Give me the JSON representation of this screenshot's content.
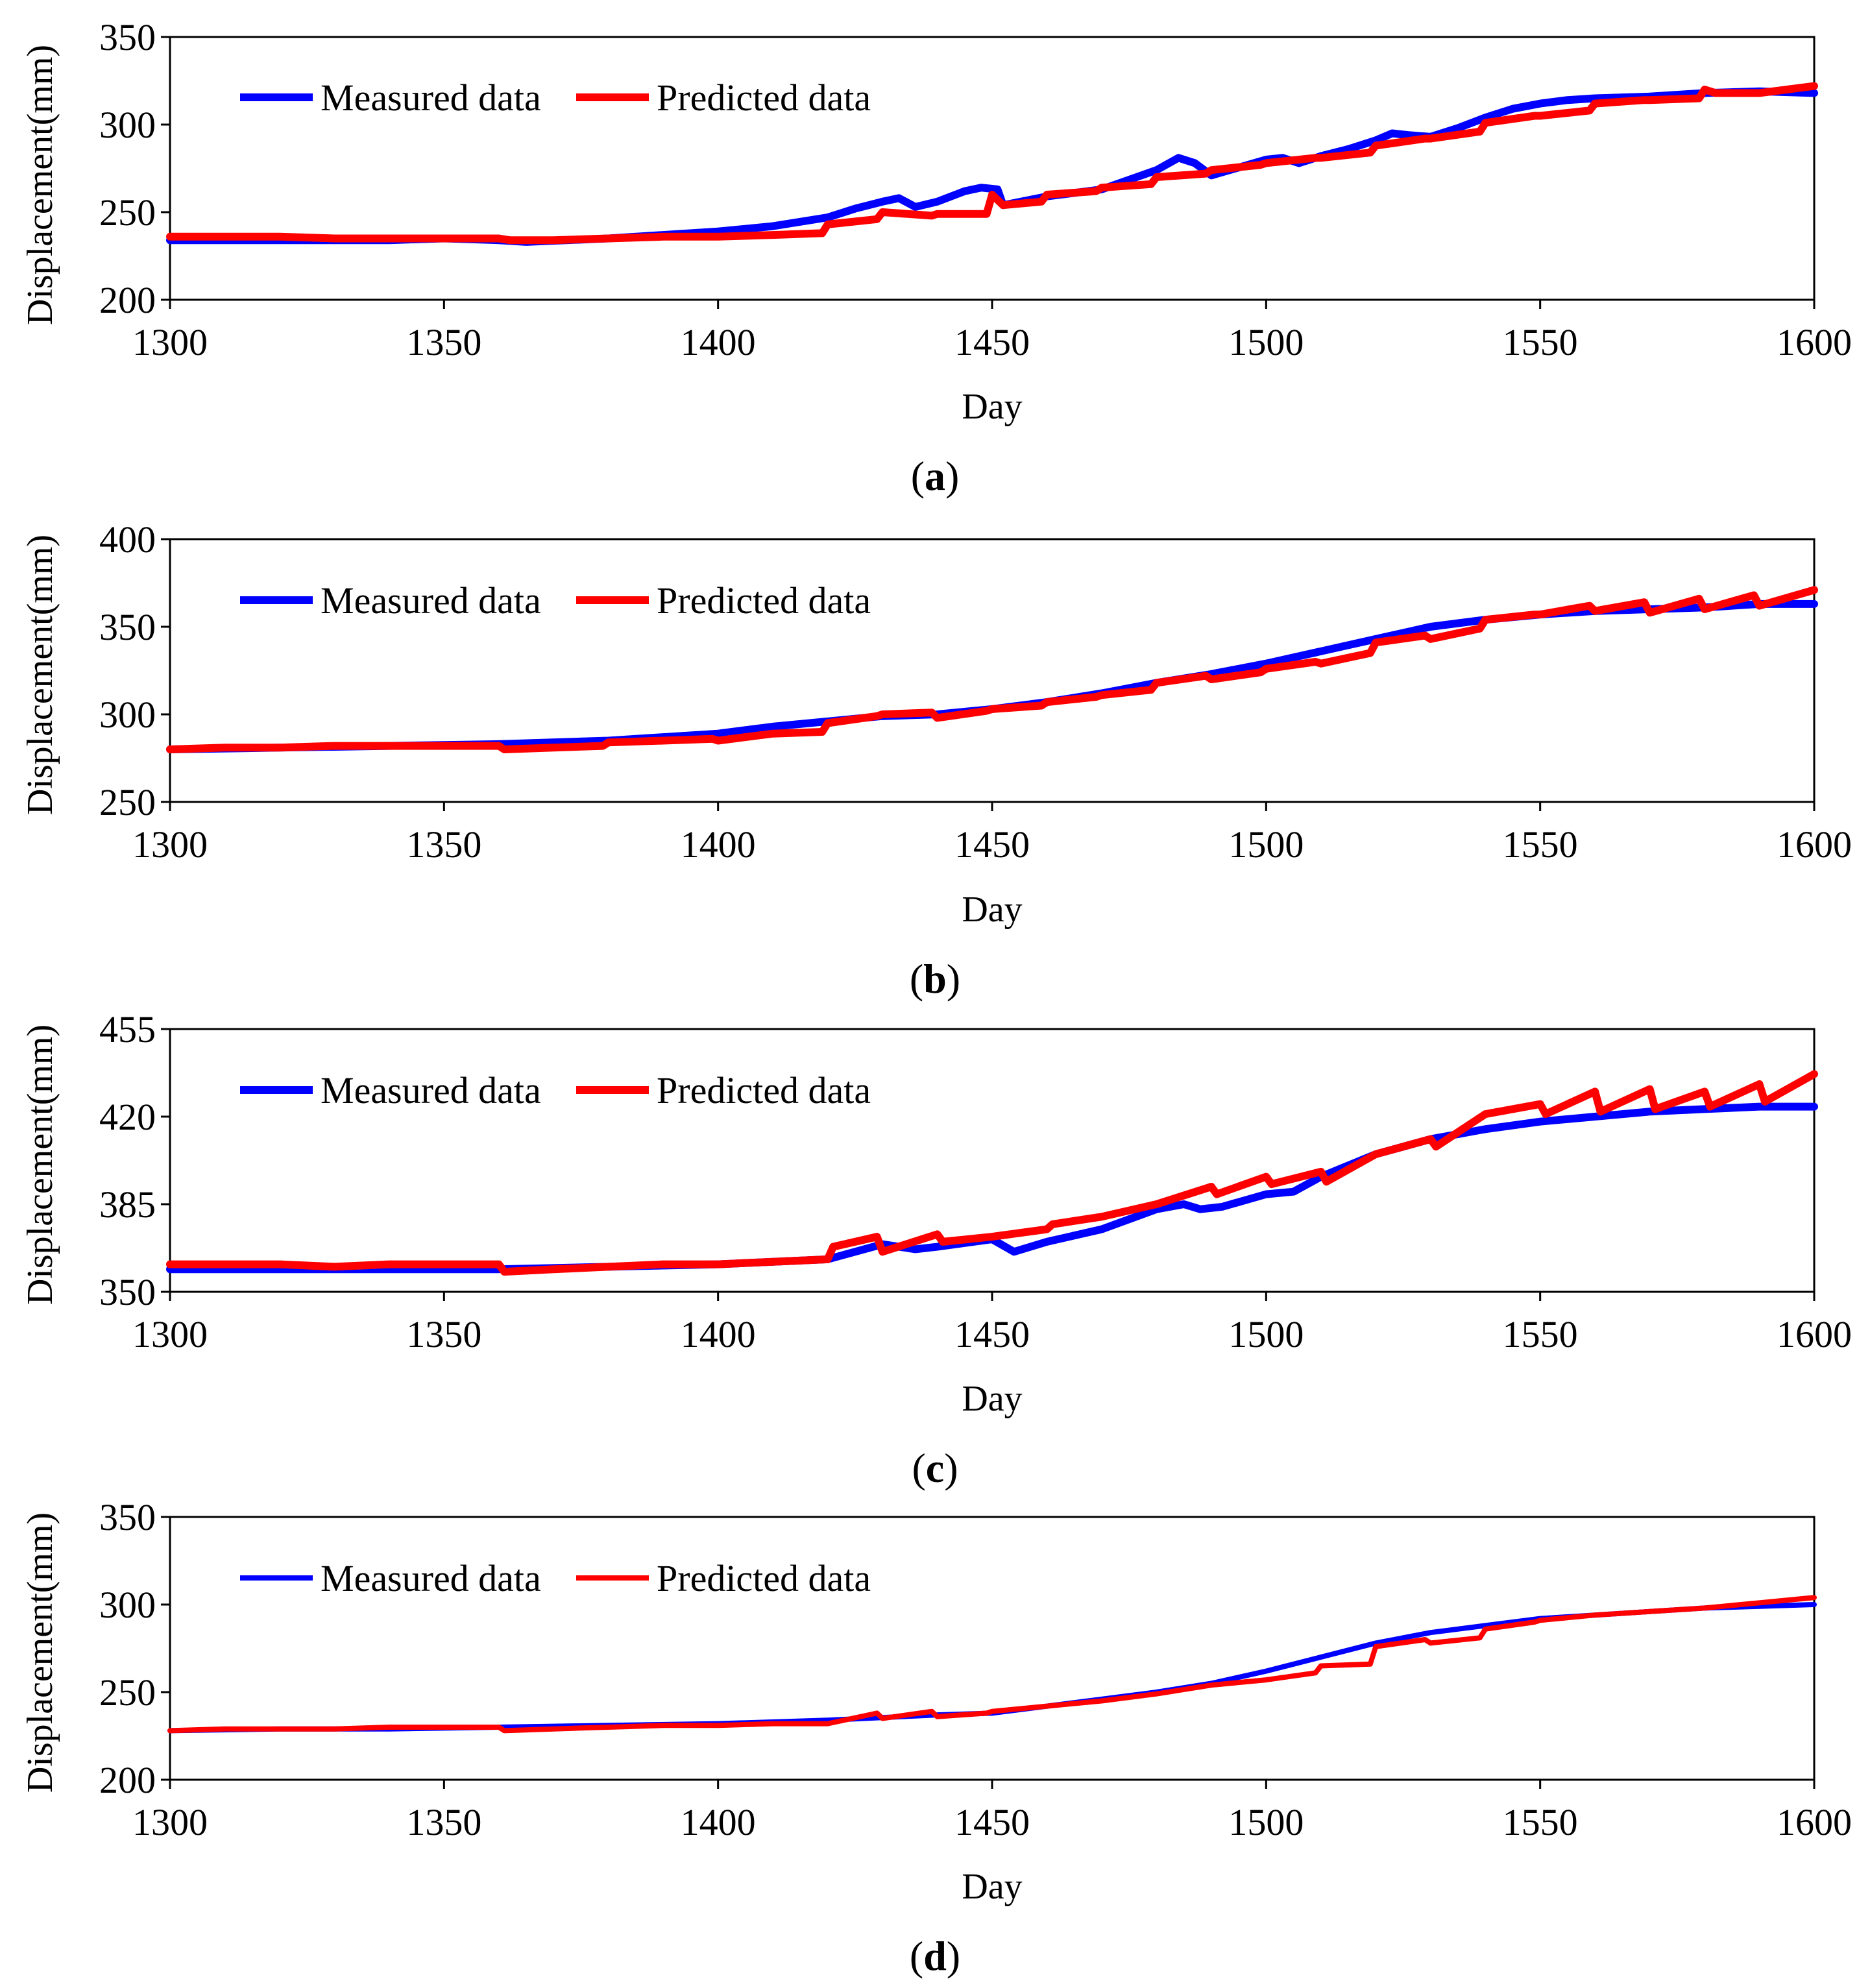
{
  "chart_data": [
    {
      "type": "line",
      "panel_label": "a",
      "xlabel": "Day",
      "ylabel": "Displacement(mm)",
      "xlim": [
        1300,
        1600
      ],
      "ylim": [
        200,
        350
      ],
      "xticks": [
        1300,
        1350,
        1400,
        1450,
        1500,
        1550,
        1600
      ],
      "yticks": [
        200,
        250,
        300,
        350
      ],
      "legend_position": "top-left",
      "series": [
        {
          "name": "Measured data",
          "color": "#0000ff",
          "x": [
            1300,
            1320,
            1340,
            1350,
            1360,
            1365,
            1380,
            1390,
            1400,
            1410,
            1420,
            1425,
            1430,
            1433,
            1436,
            1440,
            1445,
            1448,
            1451,
            1452,
            1460,
            1470,
            1480,
            1484,
            1487,
            1490,
            1500,
            1503,
            1506,
            1510,
            1515,
            1520,
            1523,
            1526,
            1530,
            1535,
            1540,
            1545,
            1550,
            1555,
            1560,
            1570,
            1580,
            1590,
            1600
          ],
          "y": [
            234,
            234,
            234,
            235,
            234,
            233,
            235,
            237,
            239,
            242,
            247,
            252,
            256,
            258,
            253,
            256,
            262,
            264,
            263,
            254,
            259,
            263,
            274,
            281,
            278,
            271,
            280,
            281,
            278,
            282,
            286,
            291,
            295,
            294,
            293,
            298,
            304,
            309,
            312,
            314,
            315,
            316,
            318,
            319,
            318
          ]
        },
        {
          "name": "Predicted data",
          "color": "#ff0000",
          "x": [
            1300,
            1310,
            1320,
            1330,
            1340,
            1350,
            1360,
            1362,
            1370,
            1380,
            1390,
            1400,
            1410,
            1419,
            1420,
            1429,
            1430,
            1439,
            1440,
            1449,
            1450,
            1452,
            1459,
            1460,
            1469,
            1470,
            1479,
            1480,
            1489,
            1490,
            1499,
            1500,
            1509,
            1510,
            1519,
            1520,
            1529,
            1530,
            1539,
            1540,
            1549,
            1550,
            1559,
            1560,
            1569,
            1570,
            1579,
            1580,
            1582,
            1590,
            1600
          ],
          "y": [
            236,
            236,
            236,
            235,
            235,
            235,
            235,
            234,
            234,
            235,
            236,
            236,
            237,
            238,
            243,
            246,
            250,
            248,
            249,
            249,
            260,
            254,
            256,
            260,
            262,
            264,
            266,
            270,
            272,
            274,
            277,
            278,
            281,
            281,
            284,
            288,
            292,
            292,
            296,
            301,
            305,
            305,
            308,
            312,
            314,
            314,
            315,
            320,
            318,
            318,
            322
          ]
        }
      ]
    },
    {
      "type": "line",
      "panel_label": "b",
      "xlabel": "Day",
      "ylabel": "Displacement(mm)",
      "xlim": [
        1300,
        1600
      ],
      "ylim": [
        250,
        400
      ],
      "xticks": [
        1300,
        1350,
        1400,
        1450,
        1500,
        1550,
        1600
      ],
      "yticks": [
        250,
        300,
        350,
        400
      ],
      "legend_position": "top-left",
      "series": [
        {
          "name": "Measured data",
          "color": "#0000ff",
          "x": [
            1300,
            1320,
            1340,
            1360,
            1380,
            1390,
            1400,
            1410,
            1420,
            1430,
            1440,
            1450,
            1460,
            1470,
            1480,
            1490,
            1500,
            1510,
            1520,
            1530,
            1540,
            1550,
            1560,
            1570,
            1580,
            1590,
            1600
          ],
          "y": [
            280,
            281,
            282,
            283,
            285,
            287,
            289,
            293,
            296,
            299,
            300,
            303,
            307,
            312,
            318,
            323,
            329,
            336,
            343,
            350,
            354,
            357,
            359,
            360,
            361,
            363,
            363
          ]
        },
        {
          "name": "Predicted data",
          "color": "#ff0000",
          "x": [
            1300,
            1310,
            1320,
            1330,
            1340,
            1350,
            1360,
            1361,
            1370,
            1379,
            1380,
            1390,
            1399,
            1400,
            1410,
            1419,
            1420,
            1429,
            1430,
            1439,
            1440,
            1449,
            1450,
            1459,
            1460,
            1469,
            1470,
            1479,
            1480,
            1489,
            1490,
            1499,
            1500,
            1509,
            1510,
            1519,
            1520,
            1529,
            1530,
            1539,
            1540,
            1549,
            1550,
            1559,
            1560,
            1569,
            1570,
            1579,
            1580,
            1589,
            1590,
            1600
          ],
          "y": [
            280,
            281,
            281,
            282,
            282,
            282,
            282,
            280,
            281,
            282,
            284,
            285,
            286,
            285,
            289,
            290,
            295,
            299,
            300,
            301,
            298,
            302,
            303,
            305,
            307,
            310,
            311,
            314,
            318,
            322,
            320,
            324,
            326,
            330,
            329,
            335,
            341,
            345,
            343,
            349,
            354,
            357,
            357,
            362,
            359,
            364,
            358,
            366,
            360,
            368,
            362,
            371
          ]
        }
      ]
    },
    {
      "type": "line",
      "panel_label": "c",
      "xlabel": "Day",
      "ylabel": "Displacement(mm)",
      "xlim": [
        1300,
        1600
      ],
      "ylim": [
        350,
        455
      ],
      "xticks": [
        1300,
        1350,
        1400,
        1450,
        1500,
        1550,
        1600
      ],
      "yticks": [
        350,
        385,
        420,
        455
      ],
      "legend_position": "top-left",
      "series": [
        {
          "name": "Measured data",
          "color": "#0000ff",
          "x": [
            1300,
            1320,
            1340,
            1360,
            1380,
            1400,
            1410,
            1420,
            1430,
            1436,
            1440,
            1450,
            1454,
            1460,
            1470,
            1480,
            1485,
            1488,
            1492,
            1500,
            1505,
            1510,
            1520,
            1530,
            1540,
            1550,
            1560,
            1570,
            1580,
            1590,
            1600
          ],
          "y": [
            359,
            359,
            359,
            359,
            360,
            361,
            362,
            363,
            369,
            367,
            368,
            371,
            366,
            370,
            375,
            383,
            385,
            383,
            384,
            389,
            390,
            396,
            405,
            411,
            415,
            418,
            420,
            422,
            423,
            424,
            424
          ]
        },
        {
          "name": "Predicted data",
          "color": "#ff0000",
          "x": [
            1300,
            1310,
            1320,
            1330,
            1340,
            1350,
            1360,
            1361,
            1370,
            1380,
            1390,
            1400,
            1410,
            1420,
            1421,
            1429,
            1430,
            1440,
            1441,
            1450,
            1460,
            1461,
            1470,
            1480,
            1490,
            1491,
            1500,
            1501,
            1510,
            1511,
            1520,
            1530,
            1531,
            1540,
            1550,
            1551,
            1560,
            1561,
            1570,
            1571,
            1580,
            1581,
            1590,
            1591,
            1600
          ],
          "y": [
            361,
            361,
            361,
            360,
            361,
            361,
            361,
            358,
            359,
            360,
            361,
            361,
            362,
            363,
            368,
            372,
            366,
            373,
            370,
            372,
            375,
            377,
            380,
            385,
            392,
            389,
            396,
            393,
            398,
            394,
            405,
            411,
            408,
            421,
            425,
            421,
            430,
            422,
            431,
            423,
            430,
            424,
            433,
            426,
            437
          ]
        }
      ]
    },
    {
      "type": "line",
      "panel_label": "d",
      "xlabel": "Day",
      "ylabel": "Displacement(mm)",
      "xlim": [
        1300,
        1600
      ],
      "ylim": [
        200,
        350
      ],
      "xticks": [
        1300,
        1350,
        1400,
        1450,
        1500,
        1550,
        1600
      ],
      "yticks": [
        200,
        250,
        300,
        350
      ],
      "legend_position": "top-left",
      "series": [
        {
          "name": "Measured data",
          "color": "#0000ff",
          "x": [
            1300,
            1320,
            1340,
            1360,
            1380,
            1400,
            1420,
            1440,
            1450,
            1460,
            1470,
            1480,
            1490,
            1500,
            1510,
            1520,
            1530,
            1540,
            1550,
            1560,
            1570,
            1580,
            1590,
            1600
          ],
          "y": [
            228,
            229,
            229,
            230,
            231,
            232,
            234,
            237,
            238,
            242,
            246,
            250,
            255,
            262,
            270,
            278,
            284,
            288,
            292,
            294,
            296,
            298,
            299,
            300
          ]
        },
        {
          "name": "Predicted data",
          "color": "#ff0000",
          "x": [
            1300,
            1310,
            1320,
            1330,
            1340,
            1350,
            1360,
            1361,
            1370,
            1380,
            1390,
            1400,
            1410,
            1420,
            1429,
            1430,
            1439,
            1440,
            1449,
            1450,
            1460,
            1470,
            1480,
            1490,
            1500,
            1509,
            1510,
            1519,
            1520,
            1529,
            1530,
            1539,
            1540,
            1549,
            1550,
            1560,
            1570,
            1580,
            1590,
            1600
          ],
          "y": [
            228,
            229,
            229,
            229,
            230,
            230,
            230,
            228,
            229,
            230,
            231,
            231,
            232,
            232,
            238,
            235,
            239,
            236,
            238,
            239,
            242,
            245,
            249,
            254,
            257,
            261,
            265,
            266,
            276,
            280,
            278,
            281,
            286,
            290,
            291,
            294,
            296,
            298,
            301,
            304
          ]
        }
      ]
    }
  ]
}
